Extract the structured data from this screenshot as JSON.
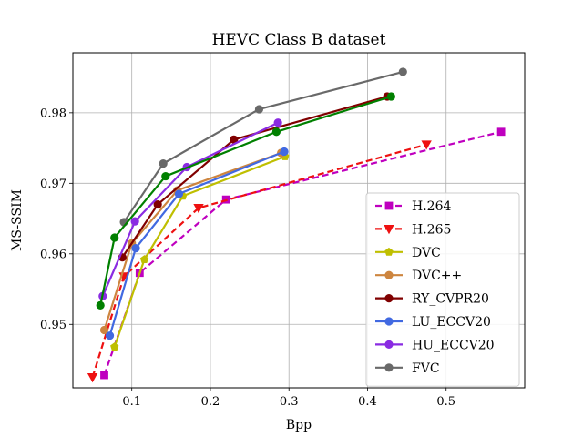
{
  "chart_data": {
    "type": "line",
    "title": "HEVC Class B dataset",
    "xlabel": "Bpp",
    "ylabel": "MS-SSIM",
    "xlim": [
      0.025,
      0.6
    ],
    "ylim": [
      0.941,
      0.9885
    ],
    "xticks": [
      0.1,
      0.2,
      0.3,
      0.4,
      0.5
    ],
    "xtick_labels": [
      "0.1",
      "0.2",
      "0.3",
      "0.4",
      "0.5"
    ],
    "yticks": [
      0.95,
      0.96,
      0.97,
      0.98
    ],
    "ytick_labels": [
      "0.95",
      "0.96",
      "0.97",
      "0.98"
    ],
    "grid": true,
    "legend_position": "lower-right",
    "series": [
      {
        "name": "H.264",
        "color": "#bf00bf",
        "dash": "dashed",
        "marker": "square",
        "x": [
          0.065,
          0.11,
          0.22,
          0.57
        ],
        "y": [
          0.9428,
          0.9573,
          0.9677,
          0.9773
        ]
      },
      {
        "name": "H.265",
        "color": "#ee1111",
        "dash": "dashed",
        "marker": "triangle-down",
        "x": [
          0.05,
          0.09,
          0.185,
          0.475
        ],
        "y": [
          0.9425,
          0.9568,
          0.9665,
          0.9755
        ]
      },
      {
        "name": "DVC",
        "color": "#bfbf00",
        "dash": "solid",
        "marker": "pentagon",
        "x": [
          0.078,
          0.116,
          0.165,
          0.295
        ],
        "y": [
          0.9468,
          0.9592,
          0.9682,
          0.9738
        ]
      },
      {
        "name": "DVC++",
        "color": "#cd853f",
        "dash": "solid",
        "marker": "circle",
        "x": [
          0.065,
          0.1,
          0.158,
          0.29
        ],
        "y": [
          0.9492,
          0.9615,
          0.969,
          0.9743
        ]
      },
      {
        "name": "RY_CVPR20",
        "color": "#800000",
        "dash": "solid",
        "marker": "circle",
        "x": [
          0.088,
          0.133,
          0.23,
          0.425
        ],
        "y": [
          0.9595,
          0.967,
          0.9762,
          0.9823
        ]
      },
      {
        "name": "LU_ECCV20",
        "color": "#4169e1",
        "dash": "solid",
        "marker": "circle",
        "x": [
          0.072,
          0.105,
          0.16,
          0.294
        ],
        "y": [
          0.9484,
          0.9608,
          0.9685,
          0.9745
        ]
      },
      {
        "name": "HU_ECCV20",
        "color": "#8a2be2",
        "dash": "solid",
        "marker": "circle",
        "x": [
          0.063,
          0.104,
          0.17,
          0.286
        ],
        "y": [
          0.954,
          0.9646,
          0.9723,
          0.9786
        ]
      },
      {
        "name": "FVC",
        "color": "#696969",
        "dash": "solid",
        "marker": "circle",
        "x": [
          0.09,
          0.14,
          0.262,
          0.445
        ],
        "y": [
          0.9645,
          0.9728,
          0.9805,
          0.9858
        ]
      },
      {
        "name": "",
        "color": "#008000",
        "dash": "solid",
        "marker": "circle",
        "in_legend": false,
        "x": [
          0.06,
          0.078,
          0.143,
          0.284,
          0.43
        ],
        "y": [
          0.9527,
          0.9623,
          0.971,
          0.9773,
          0.9823
        ]
      }
    ]
  }
}
